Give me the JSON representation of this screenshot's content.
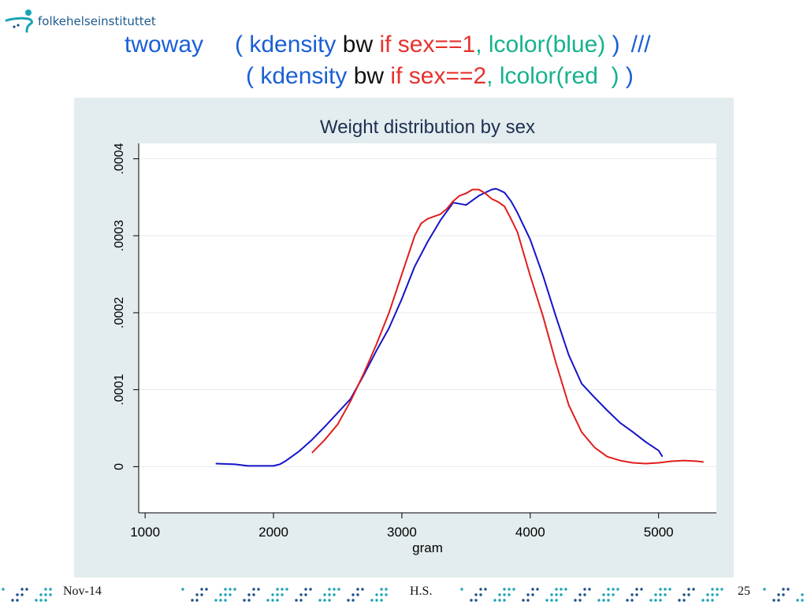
{
  "header": {
    "logo_text": "folkehelseinstituttet"
  },
  "command": {
    "line1": {
      "kw": "twoway",
      "open": "( kdensity",
      "var": " bw",
      "if": " if",
      "cond": " sex==1",
      "opt": ", lcolor(blue)",
      "close": " )",
      "cont": "///"
    },
    "line2": {
      "open": "( kdensity",
      "var": " bw",
      "if": " if",
      "cond": " sex==2",
      "opt": ", lcolor(red  )",
      "close": " )"
    }
  },
  "footer": {
    "date": "Nov-14",
    "author": "H.S.",
    "page": "25"
  },
  "colors": {
    "panel_bg": "#e3ecef",
    "plot_bg": "#ffffff",
    "series_blue": "#1414c8",
    "series_red": "#e01e1e",
    "title": "#1e3050",
    "dots_teal": "#1aa3b4",
    "dots_navy": "#1e4f88"
  },
  "chart_data": {
    "type": "line",
    "title": "Weight distribution by sex",
    "xlabel": "gram",
    "ylabel": "",
    "xlim": [
      950,
      5450
    ],
    "ylim": [
      -6e-05,
      0.00042
    ],
    "x_ticks": [
      1000,
      2000,
      3000,
      4000,
      5000
    ],
    "x_tick_labels": [
      "1000",
      "2000",
      "3000",
      "4000",
      "5000"
    ],
    "y_ticks": [
      0,
      0.0001,
      0.0002,
      0.0003,
      0.0004
    ],
    "y_tick_labels": [
      "0",
      ".0001",
      ".0002",
      ".0003",
      ".0004"
    ],
    "grid": true,
    "legend": "none",
    "series": [
      {
        "color": "blue",
        "x": [
          1550,
          1700,
          1800,
          1900,
          2000,
          2050,
          2100,
          2200,
          2300,
          2400,
          2500,
          2600,
          2700,
          2800,
          2900,
          3000,
          3100,
          3200,
          3300,
          3400,
          3500,
          3600,
          3650,
          3700,
          3730,
          3750,
          3800,
          3850,
          3900,
          4000,
          4100,
          4200,
          4300,
          4400,
          4500,
          4600,
          4700,
          4800,
          4900,
          5000,
          5030
        ],
        "y": [
          4e-06,
          3e-06,
          1e-06,
          1e-06,
          1e-06,
          3e-06,
          8e-06,
          2e-05,
          3.5e-05,
          5.2e-05,
          7e-05,
          8.8e-05,
          0.000118,
          0.00015,
          0.00018,
          0.000218,
          0.00026,
          0.000292,
          0.00032,
          0.000343,
          0.00034,
          0.000352,
          0.000356,
          0.00036,
          0.000361,
          0.00036,
          0.000356,
          0.000345,
          0.00033,
          0.000295,
          0.000248,
          0.000195,
          0.000145,
          0.000108,
          9e-05,
          7.3e-05,
          5.7e-05,
          4.5e-05,
          3.2e-05,
          2.1e-05,
          1.3e-05
        ]
      },
      {
        "color": "red",
        "x": [
          2300,
          2400,
          2500,
          2600,
          2700,
          2800,
          2900,
          3000,
          3050,
          3100,
          3150,
          3200,
          3250,
          3300,
          3350,
          3400,
          3450,
          3500,
          3550,
          3600,
          3650,
          3700,
          3750,
          3800,
          3850,
          3900,
          4000,
          4100,
          4200,
          4300,
          4400,
          4500,
          4600,
          4700,
          4800,
          4900,
          5000,
          5100,
          5200,
          5300,
          5350
        ],
        "y": [
          1.8e-05,
          3.5e-05,
          5.5e-05,
          8.5e-05,
          0.00012,
          0.000158,
          0.0002,
          0.00025,
          0.000275,
          0.0003,
          0.000316,
          0.000322,
          0.000325,
          0.000328,
          0.000335,
          0.000345,
          0.000352,
          0.000355,
          0.00036,
          0.00036,
          0.000355,
          0.000348,
          0.000344,
          0.000338,
          0.000322,
          0.000305,
          0.000248,
          0.000195,
          0.000135,
          8e-05,
          4.5e-05,
          2.5e-05,
          1.3e-05,
          8e-06,
          5e-06,
          4e-06,
          5e-06,
          7e-06,
          8e-06,
          7e-06,
          6e-06
        ]
      }
    ]
  }
}
